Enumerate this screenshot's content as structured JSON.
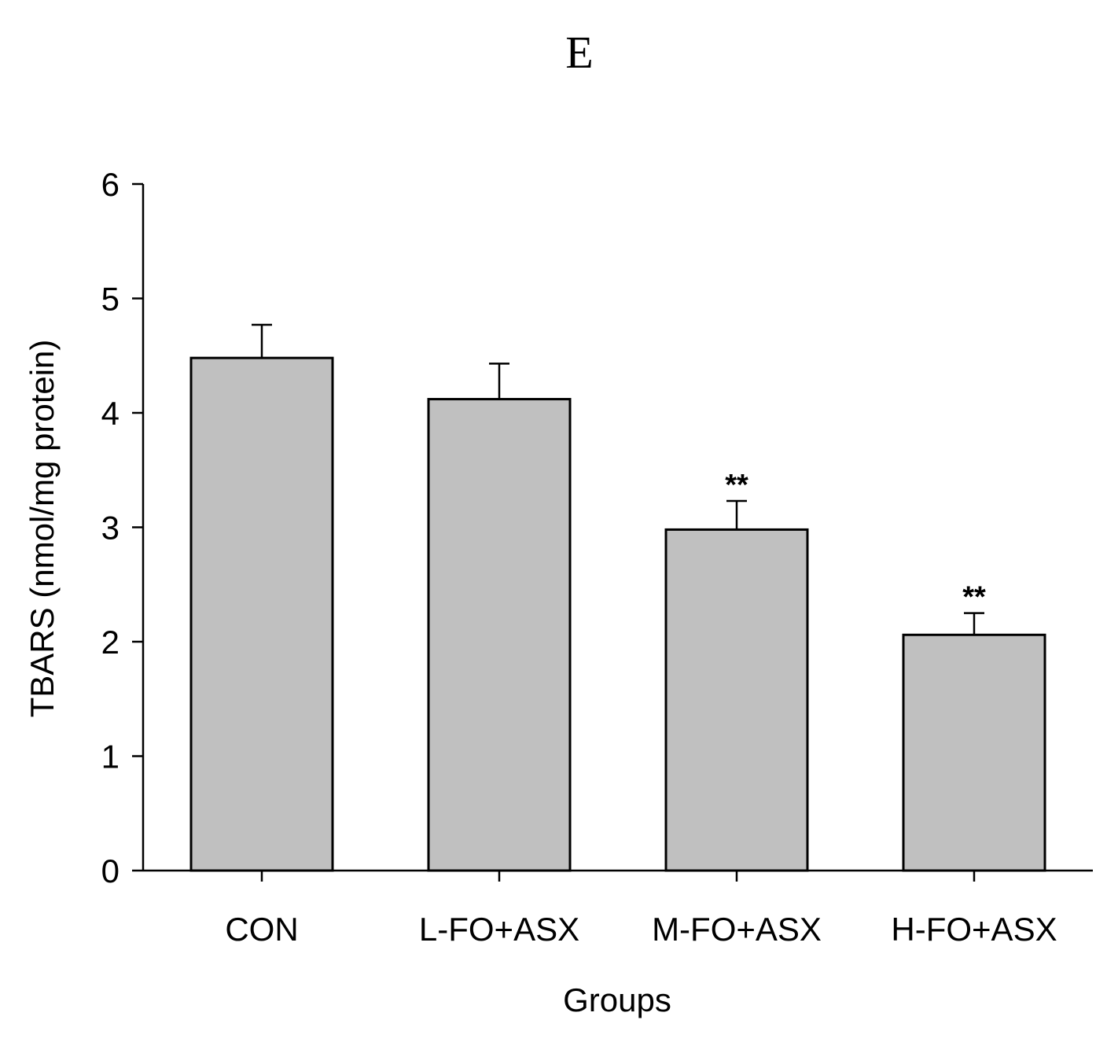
{
  "chart_data": {
    "type": "bar",
    "title": "E",
    "xlabel": "Groups",
    "ylabel": "TBARS (nmol/mg protein)",
    "categories": [
      "CON",
      "L-FO+ASX",
      "M-FO+ASX",
      "H-FO+ASX"
    ],
    "values": [
      4.48,
      4.12,
      2.98,
      2.06
    ],
    "error_upper": [
      0.29,
      0.31,
      0.25,
      0.19
    ],
    "annotations": [
      "",
      "",
      "**",
      "**"
    ],
    "ylim": [
      0,
      6
    ],
    "yticks": [
      "0",
      "1",
      "2",
      "3",
      "4",
      "5",
      "6"
    ],
    "grid": false,
    "legend": "none",
    "colors": {
      "bar_fill": "#c0c0c0",
      "bar_stroke": "#000000",
      "axis": "#000000"
    }
  }
}
